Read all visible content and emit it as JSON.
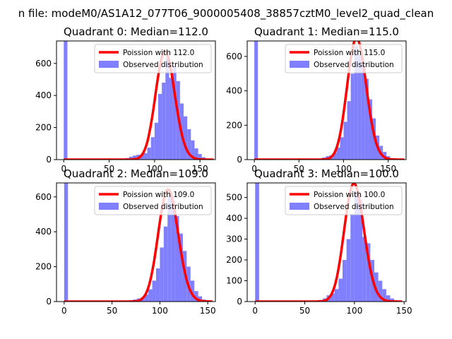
{
  "figure": {
    "suptitle": "n file: modeM0/AS1A12_077T06_9000005408_38857cztM0_level2_quad_clean"
  },
  "chart_data": [
    {
      "type": "bar",
      "title": "Quadrant 0: Median=112.0",
      "xlim": [
        -8,
        167
      ],
      "ylim": [
        0,
        740
      ],
      "xticks": [
        0,
        50,
        100,
        150
      ],
      "yticks": [
        0,
        200,
        400,
        600
      ],
      "legend": {
        "placement": "top-right",
        "line_label": "Poission with 112.0",
        "hist_label": "Observed distribution"
      },
      "median": 112.0,
      "poisson_color": "#ff0000",
      "hist_color": "#8080ff",
      "zero_bin_count": 740,
      "histogram": [
        [
          60,
          2
        ],
        [
          64,
          3
        ],
        [
          68,
          10
        ],
        [
          72,
          18
        ],
        [
          76,
          25
        ],
        [
          80,
          30
        ],
        [
          84,
          33
        ],
        [
          88,
          40
        ],
        [
          92,
          75
        ],
        [
          96,
          140
        ],
        [
          100,
          230
        ],
        [
          104,
          410
        ],
        [
          108,
          480
        ],
        [
          112,
          630
        ],
        [
          116,
          510
        ],
        [
          120,
          580
        ],
        [
          124,
          490
        ],
        [
          128,
          350
        ],
        [
          132,
          270
        ],
        [
          136,
          190
        ],
        [
          140,
          120
        ],
        [
          144,
          70
        ],
        [
          148,
          35
        ],
        [
          152,
          15
        ],
        [
          156,
          6
        ],
        [
          160,
          2
        ]
      ],
      "poisson_range": [
        0,
        165
      ]
    },
    {
      "type": "bar",
      "title": "Quadrant 1: Median=115.0",
      "xlim": [
        -8,
        170
      ],
      "ylim": [
        0,
        690
      ],
      "xticks": [
        0,
        50,
        100,
        150
      ],
      "yticks": [
        0,
        200,
        400,
        600
      ],
      "legend": {
        "placement": "top-right",
        "line_label": "Poission with 115.0",
        "hist_label": "Observed distribution"
      },
      "median": 115.0,
      "poisson_color": "#ff0000",
      "hist_color": "#8080ff",
      "zero_bin_count": 690,
      "histogram": [
        [
          68,
          2
        ],
        [
          72,
          5
        ],
        [
          76,
          12
        ],
        [
          80,
          20
        ],
        [
          84,
          25
        ],
        [
          88,
          40
        ],
        [
          92,
          70
        ],
        [
          96,
          130
        ],
        [
          100,
          220
        ],
        [
          104,
          340
        ],
        [
          108,
          500
        ],
        [
          112,
          660
        ],
        [
          116,
          610
        ],
        [
          120,
          560
        ],
        [
          124,
          470
        ],
        [
          128,
          350
        ],
        [
          132,
          240
        ],
        [
          136,
          140
        ],
        [
          140,
          80
        ],
        [
          144,
          45
        ],
        [
          148,
          20
        ],
        [
          152,
          8
        ],
        [
          156,
          3
        ],
        [
          160,
          1
        ]
      ],
      "poisson_range": [
        0,
        168
      ]
    },
    {
      "type": "bar",
      "title": "Quadrant 2: Median=109.0",
      "xlim": [
        -8,
        158
      ],
      "ylim": [
        0,
        680
      ],
      "xticks": [
        0,
        50,
        100,
        150
      ],
      "yticks": [
        0,
        200,
        400,
        600
      ],
      "legend": {
        "placement": "top-right",
        "line_label": "Poission with 109.0",
        "hist_label": "Observed distribution"
      },
      "median": 109.0,
      "poisson_color": "#ff0000",
      "hist_color": "#8080ff",
      "zero_bin_count": 680,
      "histogram": [
        [
          64,
          3
        ],
        [
          68,
          8
        ],
        [
          72,
          12
        ],
        [
          76,
          18
        ],
        [
          80,
          25
        ],
        [
          84,
          40
        ],
        [
          88,
          70
        ],
        [
          92,
          120
        ],
        [
          96,
          190
        ],
        [
          100,
          310
        ],
        [
          104,
          430
        ],
        [
          108,
          600
        ],
        [
          112,
          580
        ],
        [
          116,
          490
        ],
        [
          120,
          390
        ],
        [
          124,
          290
        ],
        [
          128,
          200
        ],
        [
          132,
          120
        ],
        [
          136,
          60
        ],
        [
          140,
          30
        ],
        [
          144,
          12
        ],
        [
          148,
          4
        ]
      ],
      "poisson_range": [
        0,
        155
      ]
    },
    {
      "type": "bar",
      "title": "Quadrant 3: Median=100.0",
      "xlim": [
        -8,
        152
      ],
      "ylim": [
        0,
        570
      ],
      "xticks": [
        0,
        50,
        100,
        150
      ],
      "yticks": [
        0,
        100,
        200,
        300,
        400,
        500
      ],
      "legend": {
        "placement": "top-right",
        "line_label": "Poission with 100.0",
        "hist_label": "Observed distribution"
      },
      "median": 100.0,
      "poisson_color": "#ff0000",
      "hist_color": "#8080ff",
      "zero_bin_count": 570,
      "histogram": [
        [
          60,
          3
        ],
        [
          64,
          8
        ],
        [
          68,
          15
        ],
        [
          72,
          30
        ],
        [
          76,
          40
        ],
        [
          80,
          60
        ],
        [
          84,
          110
        ],
        [
          88,
          200
        ],
        [
          92,
          300
        ],
        [
          96,
          420
        ],
        [
          100,
          530
        ],
        [
          104,
          490
        ],
        [
          108,
          310
        ],
        [
          112,
          280
        ],
        [
          116,
          200
        ],
        [
          120,
          140
        ],
        [
          124,
          100
        ],
        [
          128,
          60
        ],
        [
          132,
          30
        ],
        [
          136,
          15
        ],
        [
          140,
          6
        ],
        [
          144,
          2
        ]
      ],
      "poisson_range": [
        0,
        148
      ]
    }
  ]
}
